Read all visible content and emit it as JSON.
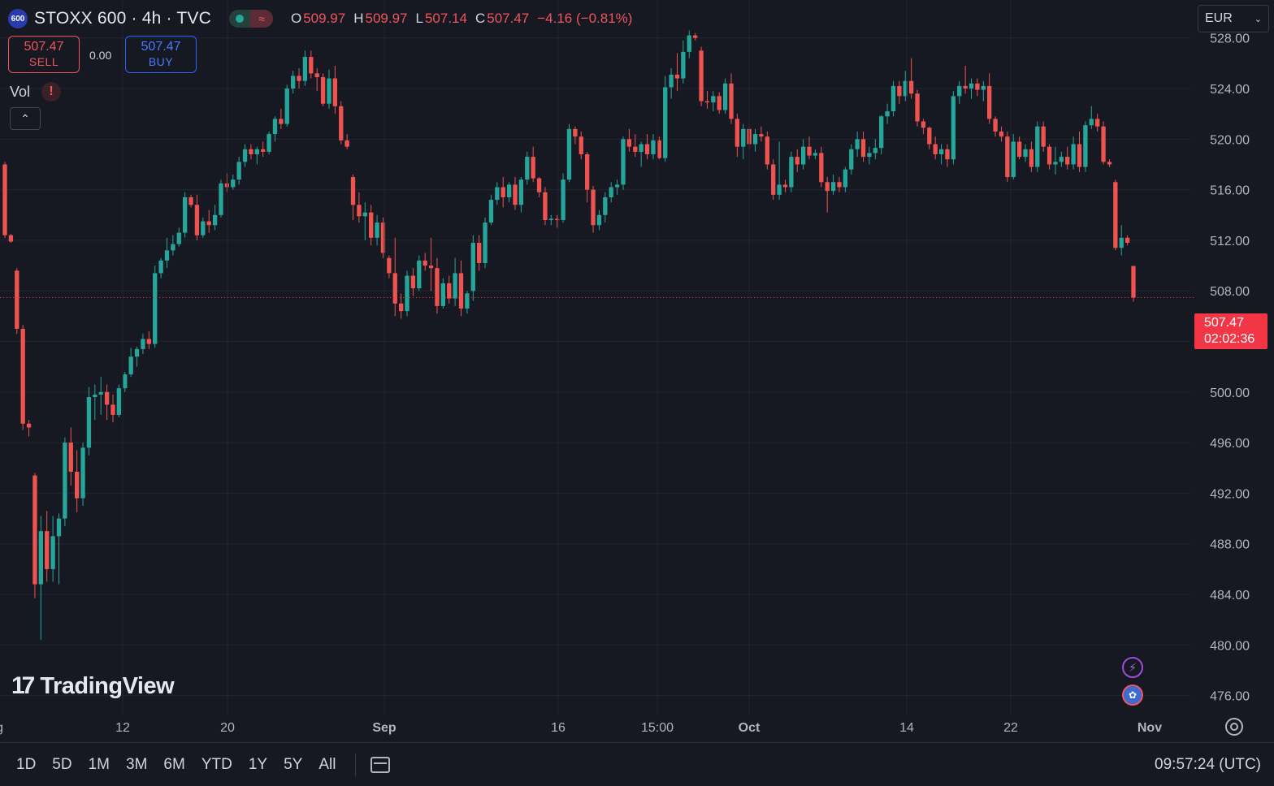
{
  "header": {
    "logo_text": "600",
    "symbol": "STOXX 600 · 4h · TVC",
    "wave_icon": "≈",
    "ohlc": [
      {
        "key": "O",
        "value": "509.97"
      },
      {
        "key": "H",
        "value": "509.97"
      },
      {
        "key": "L",
        "value": "507.14"
      },
      {
        "key": "C",
        "value": "507.47"
      }
    ],
    "change": "−4.16 (−0.81%)"
  },
  "trade": {
    "sell_price": "507.47",
    "sell_label": "SELL",
    "spread": "0.00",
    "buy_price": "507.47",
    "buy_label": "BUY"
  },
  "indicator": {
    "label": "Vol",
    "warning": "!"
  },
  "currency": {
    "label": "EUR"
  },
  "last_price": {
    "price": "507.47",
    "countdown": "02:02:36"
  },
  "watermark": {
    "text": "TradingView",
    "mark": "17"
  },
  "bottom_bar": {
    "ranges": [
      "1D",
      "5D",
      "1M",
      "3M",
      "6M",
      "YTD",
      "1Y",
      "5Y",
      "All"
    ],
    "clock": "09:57:24 (UTC)"
  },
  "colors": {
    "up": "#26a69a",
    "down": "#ef5350",
    "background": "#161822",
    "grid": "#232632",
    "last_price": "#f23645"
  },
  "chart_data": {
    "type": "candlestick",
    "title": "STOXX 600 · 4h · TVC",
    "ylim": [
      474.5,
      531
    ],
    "yticks": [
      476,
      480,
      484,
      488,
      492,
      496,
      500,
      504,
      508,
      512,
      516,
      520,
      524,
      528
    ],
    "ytick_labels": [
      "476.00",
      "480.00",
      "484.00",
      "488.00",
      "492.00",
      "496.00",
      "500.00",
      "504.00",
      "508.00",
      "512.00",
      "516.00",
      "520.00",
      "524.00",
      "528.00"
    ],
    "xtick_labels": [
      "ug",
      "12",
      "20",
      "Sep",
      "16",
      "15:00",
      "Oct",
      "14",
      "22",
      "Nov"
    ],
    "last_price": 507.47,
    "candles": [
      [
        518.0,
        518.2,
        512.2,
        512.4
      ],
      [
        512.4,
        512.5,
        511.8,
        511.9
      ],
      [
        509.6,
        509.8,
        504.6,
        505.0
      ],
      [
        505.0,
        505.3,
        497.0,
        497.5
      ],
      [
        497.5,
        497.8,
        496.5,
        497.2
      ],
      [
        493.4,
        493.6,
        483.7,
        484.8
      ],
      [
        484.8,
        490.2,
        480.4,
        489.0
      ],
      [
        489.0,
        490.6,
        485.0,
        486.0
      ],
      [
        486.0,
        490.2,
        485.0,
        488.6
      ],
      [
        488.6,
        490.4,
        484.8,
        490.0
      ],
      [
        490.0,
        496.4,
        489.4,
        496.0
      ],
      [
        496.0,
        497.2,
        492.6,
        493.7
      ],
      [
        493.7,
        495.4,
        490.5,
        491.6
      ],
      [
        491.6,
        496.0,
        491.0,
        495.6
      ],
      [
        495.6,
        500.4,
        495.0,
        499.6
      ],
      [
        499.6,
        500.6,
        497.8,
        499.8
      ],
      [
        499.8,
        501.2,
        498.2,
        500.0
      ],
      [
        500.0,
        500.6,
        497.8,
        499.0
      ],
      [
        499.0,
        499.8,
        497.6,
        498.2
      ],
      [
        498.2,
        500.6,
        498.0,
        500.3
      ],
      [
        500.3,
        501.6,
        500.0,
        501.4
      ],
      [
        501.4,
        503.5,
        501.2,
        502.8
      ],
      [
        502.8,
        503.6,
        502.0,
        503.4
      ],
      [
        503.4,
        504.6,
        503.0,
        504.2
      ],
      [
        504.2,
        504.8,
        503.4,
        503.8
      ],
      [
        503.8,
        510.0,
        503.5,
        509.4
      ],
      [
        509.4,
        510.6,
        509.0,
        510.4
      ],
      [
        510.4,
        512.2,
        509.8,
        511.2
      ],
      [
        511.2,
        512.4,
        510.8,
        511.7
      ],
      [
        511.7,
        513.0,
        511.5,
        512.6
      ],
      [
        512.6,
        515.8,
        512.2,
        515.4
      ],
      [
        515.4,
        515.6,
        514.6,
        514.8
      ],
      [
        514.8,
        515.6,
        512.0,
        512.4
      ],
      [
        512.4,
        513.8,
        512.2,
        513.5
      ],
      [
        513.5,
        514.4,
        512.6,
        513.2
      ],
      [
        513.2,
        514.8,
        512.8,
        514.0
      ],
      [
        514.0,
        516.8,
        513.8,
        516.5
      ],
      [
        516.5,
        517.3,
        515.8,
        516.2
      ],
      [
        516.2,
        517.2,
        516.0,
        516.8
      ],
      [
        516.8,
        518.6,
        516.4,
        518.2
      ],
      [
        518.2,
        519.6,
        517.8,
        519.2
      ],
      [
        519.2,
        519.6,
        518.4,
        518.8
      ],
      [
        518.8,
        519.4,
        518.0,
        519.2
      ],
      [
        519.2,
        519.8,
        518.6,
        519.0
      ],
      [
        519.0,
        520.6,
        518.8,
        520.4
      ],
      [
        520.4,
        521.8,
        519.8,
        521.6
      ],
      [
        521.6,
        522.4,
        520.8,
        521.2
      ],
      [
        521.2,
        524.3,
        521.0,
        524.0
      ],
      [
        524.0,
        525.4,
        523.6,
        525.0
      ],
      [
        525.0,
        525.6,
        524.0,
        524.6
      ],
      [
        524.6,
        527.0,
        524.2,
        526.5
      ],
      [
        526.5,
        527.0,
        524.8,
        525.2
      ],
      [
        525.2,
        525.6,
        523.8,
        524.9
      ],
      [
        524.9,
        525.2,
        522.6,
        522.8
      ],
      [
        522.8,
        525.5,
        522.4,
        524.8
      ],
      [
        524.8,
        525.8,
        522.0,
        522.6
      ],
      [
        522.6,
        523.0,
        519.6,
        519.9
      ],
      [
        519.9,
        520.4,
        519.2,
        519.4
      ],
      [
        517.0,
        517.2,
        513.6,
        514.8
      ],
      [
        514.8,
        515.8,
        513.4,
        513.9
      ],
      [
        513.9,
        515.0,
        512.0,
        514.2
      ],
      [
        514.2,
        514.8,
        511.6,
        512.2
      ],
      [
        512.2,
        514.0,
        511.6,
        513.4
      ],
      [
        513.4,
        513.8,
        510.6,
        511.0
      ],
      [
        510.6,
        510.8,
        509.0,
        509.4
      ],
      [
        509.4,
        512.2,
        506.0,
        507.0
      ],
      [
        507.0,
        507.8,
        505.8,
        506.4
      ],
      [
        506.4,
        509.6,
        506.0,
        509.2
      ],
      [
        509.2,
        509.8,
        507.6,
        508.2
      ],
      [
        508.2,
        510.8,
        508.0,
        510.4
      ],
      [
        510.4,
        511.0,
        509.6,
        510.0
      ],
      [
        510.0,
        512.2,
        508.0,
        509.8
      ],
      [
        509.8,
        510.6,
        506.2,
        506.8
      ],
      [
        506.8,
        509.0,
        506.6,
        508.6
      ],
      [
        508.6,
        509.2,
        507.0,
        507.4
      ],
      [
        507.4,
        510.6,
        506.8,
        509.4
      ],
      [
        509.4,
        510.4,
        506.0,
        506.6
      ],
      [
        506.6,
        508.0,
        506.2,
        507.8
      ],
      [
        508.0,
        512.4,
        507.2,
        511.8
      ],
      [
        511.8,
        512.4,
        509.6,
        510.2
      ],
      [
        510.2,
        513.8,
        509.8,
        513.4
      ],
      [
        513.4,
        515.6,
        513.2,
        515.2
      ],
      [
        515.2,
        516.6,
        514.8,
        516.2
      ],
      [
        516.2,
        517.0,
        514.6,
        515.4
      ],
      [
        515.4,
        516.6,
        515.0,
        516.4
      ],
      [
        516.4,
        517.0,
        514.4,
        514.8
      ],
      [
        514.8,
        517.0,
        514.2,
        516.8
      ],
      [
        516.8,
        519.0,
        516.4,
        518.6
      ],
      [
        518.6,
        519.4,
        516.6,
        516.9
      ],
      [
        516.9,
        517.0,
        515.4,
        515.8
      ],
      [
        515.8,
        516.2,
        513.2,
        513.6
      ],
      [
        513.6,
        514.0,
        513.2,
        513.7
      ],
      [
        513.7,
        514.0,
        513.0,
        513.6
      ],
      [
        513.6,
        517.3,
        513.4,
        516.8
      ],
      [
        516.8,
        521.2,
        516.6,
        520.8
      ],
      [
        520.8,
        521.0,
        519.6,
        520.2
      ],
      [
        520.2,
        520.6,
        518.4,
        518.8
      ],
      [
        518.8,
        519.0,
        515.0,
        516.0
      ],
      [
        516.0,
        516.3,
        512.6,
        513.2
      ],
      [
        513.2,
        514.4,
        512.8,
        514.0
      ],
      [
        514.0,
        515.8,
        513.4,
        515.4
      ],
      [
        515.4,
        516.6,
        515.0,
        516.2
      ],
      [
        516.2,
        516.8,
        515.6,
        516.4
      ],
      [
        516.4,
        520.2,
        516.0,
        520.0
      ],
      [
        520.0,
        520.8,
        519.0,
        519.4
      ],
      [
        519.4,
        520.4,
        518.6,
        519.0
      ],
      [
        519.0,
        519.8,
        517.8,
        519.6
      ],
      [
        519.6,
        520.4,
        518.4,
        518.8
      ],
      [
        518.8,
        520.4,
        518.4,
        519.9
      ],
      [
        519.9,
        520.2,
        518.4,
        518.5
      ],
      [
        518.5,
        525.0,
        518.2,
        524.1
      ],
      [
        524.1,
        525.6,
        523.2,
        525.1
      ],
      [
        525.1,
        526.8,
        523.8,
        524.8
      ],
      [
        524.8,
        527.8,
        524.4,
        526.9
      ],
      [
        526.9,
        528.6,
        526.4,
        528.2
      ],
      [
        528.2,
        528.4,
        527.8,
        528.0
      ],
      [
        527.0,
        527.3,
        522.6,
        523.0
      ],
      [
        523.0,
        523.8,
        522.4,
        522.9
      ],
      [
        522.9,
        523.8,
        522.2,
        523.4
      ],
      [
        523.4,
        523.7,
        522.0,
        522.3
      ],
      [
        522.3,
        524.8,
        522.0,
        524.4
      ],
      [
        524.4,
        525.2,
        521.2,
        521.6
      ],
      [
        521.6,
        522.0,
        518.6,
        519.4
      ],
      [
        519.4,
        521.2,
        518.4,
        520.8
      ],
      [
        520.8,
        521.0,
        519.2,
        519.6
      ],
      [
        519.6,
        520.8,
        519.0,
        520.4
      ],
      [
        520.4,
        521.0,
        519.8,
        520.2
      ],
      [
        520.2,
        520.6,
        517.6,
        518.0
      ],
      [
        518.0,
        518.4,
        515.2,
        515.6
      ],
      [
        515.6,
        519.8,
        515.2,
        516.4
      ],
      [
        516.4,
        516.8,
        515.8,
        516.2
      ],
      [
        516.2,
        519.0,
        515.8,
        518.6
      ],
      [
        518.6,
        519.2,
        517.4,
        518.0
      ],
      [
        518.0,
        520.0,
        517.6,
        519.4
      ],
      [
        519.4,
        520.2,
        518.4,
        518.7
      ],
      [
        518.7,
        519.2,
        518.4,
        518.9
      ],
      [
        518.9,
        519.4,
        516.2,
        516.6
      ],
      [
        516.6,
        517.0,
        514.2,
        515.9
      ],
      [
        515.9,
        517.2,
        515.6,
        516.6
      ],
      [
        516.6,
        517.0,
        515.8,
        516.2
      ],
      [
        516.2,
        517.8,
        515.8,
        517.6
      ],
      [
        517.6,
        519.6,
        517.2,
        519.2
      ],
      [
        519.2,
        520.6,
        518.6,
        520.0
      ],
      [
        520.0,
        520.6,
        518.2,
        518.6
      ],
      [
        518.6,
        519.4,
        518.0,
        518.9
      ],
      [
        518.9,
        520.0,
        518.4,
        519.3
      ],
      [
        519.3,
        521.9,
        518.8,
        521.8
      ],
      [
        521.8,
        522.8,
        521.2,
        522.2
      ],
      [
        522.2,
        524.6,
        521.8,
        524.2
      ],
      [
        524.2,
        524.6,
        522.8,
        523.4
      ],
      [
        523.4,
        525.4,
        523.0,
        524.6
      ],
      [
        524.6,
        526.4,
        523.2,
        523.6
      ],
      [
        523.6,
        523.9,
        521.0,
        521.4
      ],
      [
        521.4,
        521.6,
        520.4,
        520.9
      ],
      [
        520.9,
        521.0,
        519.2,
        519.6
      ],
      [
        519.6,
        520.2,
        518.4,
        518.8
      ],
      [
        518.8,
        519.6,
        518.0,
        519.2
      ],
      [
        519.2,
        519.6,
        517.8,
        518.4
      ],
      [
        518.4,
        523.8,
        518.0,
        523.4
      ],
      [
        523.4,
        524.6,
        522.8,
        524.2
      ],
      [
        524.2,
        525.8,
        523.6,
        524.0
      ],
      [
        524.0,
        524.8,
        523.2,
        524.4
      ],
      [
        524.4,
        524.8,
        523.4,
        523.9
      ],
      [
        523.9,
        524.6,
        523.0,
        524.2
      ],
      [
        524.2,
        525.2,
        521.2,
        521.6
      ],
      [
        521.6,
        521.8,
        520.2,
        520.6
      ],
      [
        520.6,
        521.0,
        519.8,
        520.2
      ],
      [
        520.2,
        520.6,
        516.6,
        517.0
      ],
      [
        517.0,
        520.4,
        516.8,
        519.8
      ],
      [
        519.8,
        520.2,
        518.4,
        518.6
      ],
      [
        518.6,
        519.6,
        518.2,
        519.2
      ],
      [
        519.2,
        519.8,
        517.4,
        517.8
      ],
      [
        517.8,
        521.4,
        517.4,
        521.0
      ],
      [
        521.0,
        521.4,
        519.0,
        519.4
      ],
      [
        519.4,
        519.6,
        517.6,
        518.0
      ],
      [
        518.0,
        519.4,
        517.2,
        518.2
      ],
      [
        518.2,
        519.0,
        517.8,
        518.6
      ],
      [
        518.6,
        519.4,
        517.6,
        518.0
      ],
      [
        518.0,
        520.2,
        517.6,
        519.6
      ],
      [
        519.6,
        520.6,
        517.4,
        517.8
      ],
      [
        517.8,
        521.4,
        517.4,
        521.1
      ],
      [
        521.1,
        522.6,
        520.8,
        521.6
      ],
      [
        521.6,
        522.0,
        520.6,
        521.0
      ],
      [
        521.0,
        521.4,
        518.0,
        518.2
      ],
      [
        518.2,
        518.4,
        517.8,
        518.0
      ],
      [
        516.6,
        516.8,
        511.2,
        511.4
      ],
      [
        511.4,
        513.2,
        510.8,
        512.2
      ],
      [
        512.2,
        512.4,
        511.6,
        511.8
      ],
      [
        509.97,
        509.97,
        507.14,
        507.47
      ]
    ]
  }
}
